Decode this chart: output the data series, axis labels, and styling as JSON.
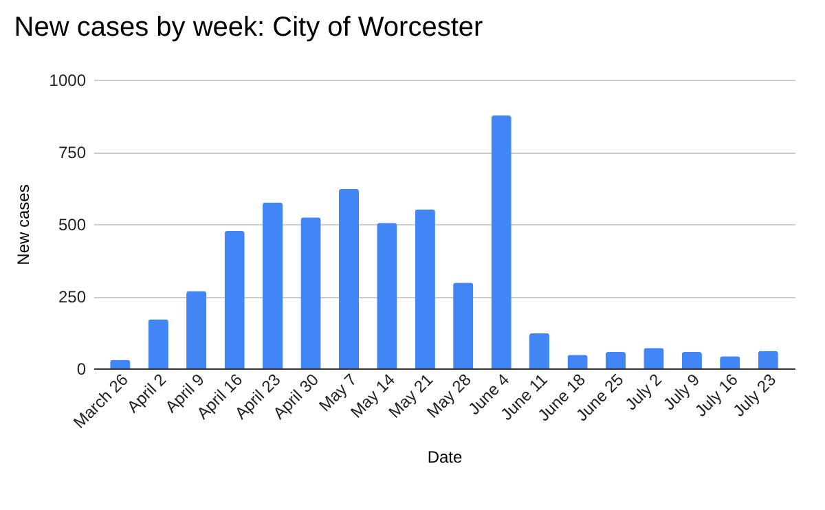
{
  "chart_data": {
    "type": "bar",
    "title": "New cases by week: City of Worcester",
    "xlabel": "Date",
    "ylabel": "New cases",
    "categories": [
      "March 26",
      "April 2",
      "April 9",
      "April 16",
      "April 23",
      "April 30",
      "May 7",
      "May 14",
      "May 21",
      "May 28",
      "June 4",
      "June 11",
      "June 18",
      "June 25",
      "July 2",
      "July 9",
      "July 16",
      "July 23"
    ],
    "values": [
      30,
      170,
      268,
      476,
      575,
      523,
      622,
      504,
      551,
      297,
      876,
      122,
      47,
      57,
      71,
      57,
      42,
      61
    ],
    "color": "#4285f4",
    "ylim": [
      0,
      1000
    ],
    "yticks": [
      0,
      250,
      500,
      750,
      1000
    ],
    "grid": "y"
  }
}
